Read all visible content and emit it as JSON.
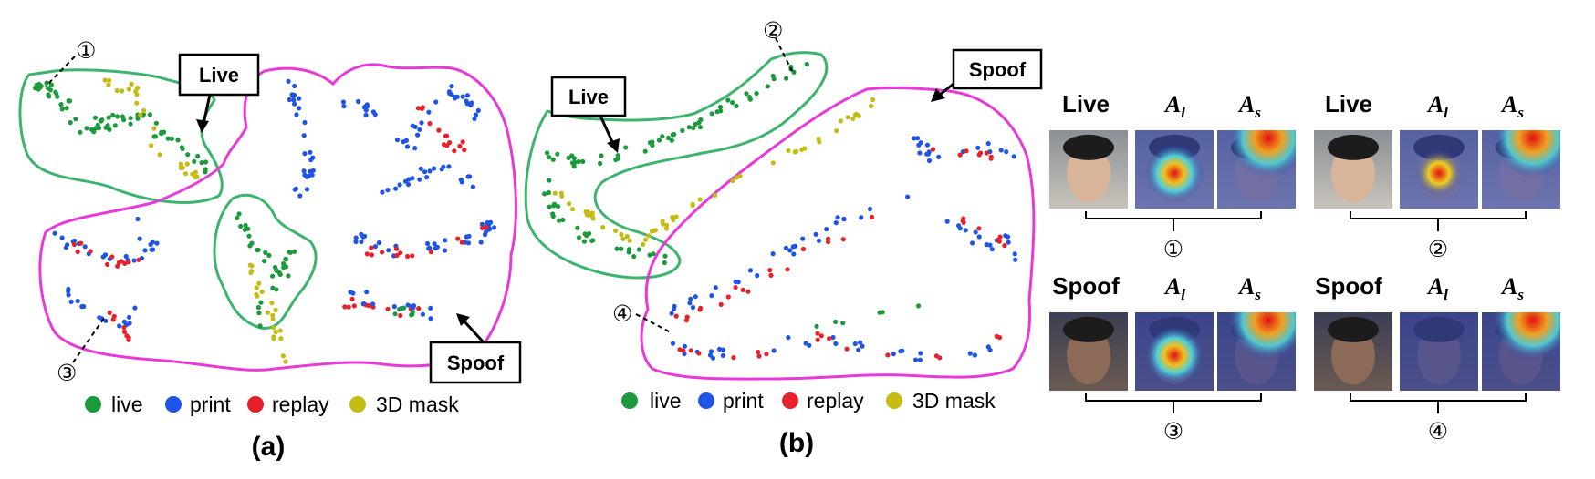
{
  "panel_a": {
    "caption": "(a)",
    "box_live": "Live",
    "box_spoof": "Spoof",
    "marker_1": "①",
    "marker_3": "③",
    "legend": [
      "live",
      "print",
      "replay",
      "3D mask"
    ]
  },
  "panel_b": {
    "caption": "(b)",
    "box_live": "Live",
    "box_spoof": "Spoof",
    "marker_2": "②",
    "marker_4": "④",
    "legend": [
      "live",
      "print",
      "replay",
      "3D mask"
    ]
  },
  "colors": {
    "live": "#1a9a3c",
    "print": "#1f55e6",
    "replay": "#e8202a",
    "mask3d": "#c4bc12",
    "live_contour": "#3cb46e",
    "spoof_contour": "#e83ad8"
  },
  "attention": {
    "groups": [
      {
        "type": "Live",
        "al": "A",
        "al_sub": "l",
        "as": "A",
        "as_sub": "s",
        "id": "①"
      },
      {
        "type": "Live",
        "al": "A",
        "al_sub": "l",
        "as": "A",
        "as_sub": "s",
        "id": "②"
      },
      {
        "type": "Spoof",
        "al": "A",
        "al_sub": "l",
        "as": "A",
        "as_sub": "s",
        "id": "③"
      },
      {
        "type": "Spoof",
        "al": "A",
        "al_sub": "l",
        "as": "A",
        "as_sub": "s",
        "id": "④"
      }
    ]
  }
}
